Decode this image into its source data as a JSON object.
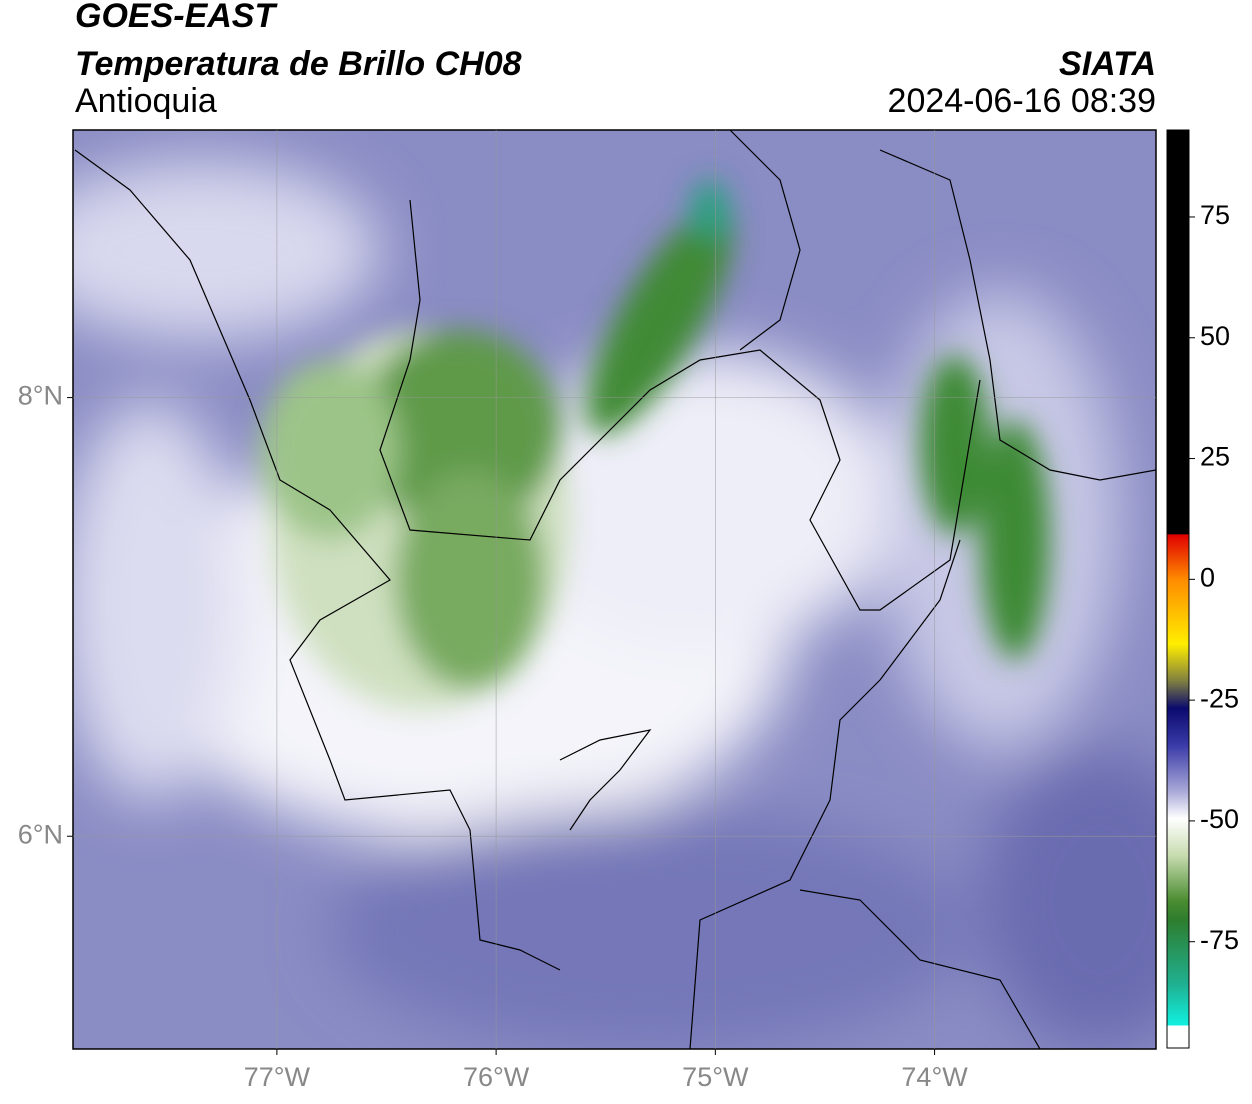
{
  "header": {
    "satellite": "GOES-EAST",
    "product": "Temperatura de Brillo CH08",
    "region": "Antioquia",
    "source": "SIATA",
    "datetime": "2024-06-16 08:39"
  },
  "map": {
    "xlim": [
      -77.93,
      -72.99
    ],
    "ylim": [
      5.03,
      9.22
    ],
    "xticks": [
      {
        "value": -77,
        "label": "77°W"
      },
      {
        "value": -76,
        "label": "76°W"
      },
      {
        "value": -75,
        "label": "75°W"
      },
      {
        "value": -74,
        "label": "74°W"
      }
    ],
    "yticks": [
      {
        "value": 6,
        "label": "6°N"
      },
      {
        "value": 8,
        "label": "8°N"
      }
    ]
  },
  "colorbar": {
    "lim": [
      -97,
      93
    ],
    "ticks": [
      75,
      50,
      25,
      0,
      -25,
      -50,
      -75
    ]
  }
}
